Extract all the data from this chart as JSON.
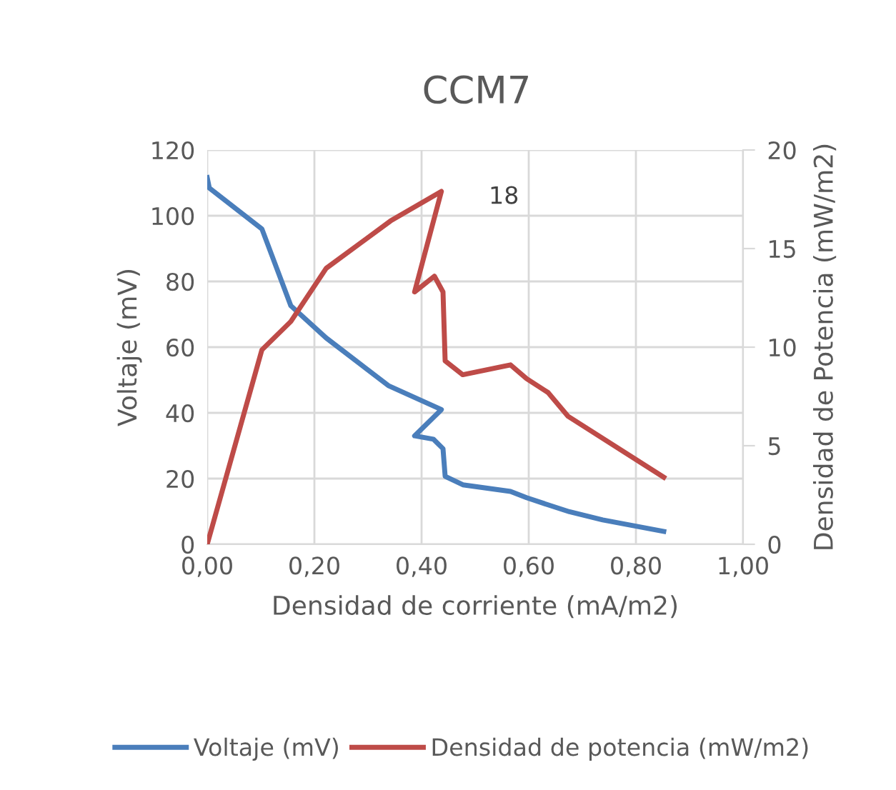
{
  "chart_data": {
    "type": "line",
    "title": "CCM7",
    "xlabel": "Densidad de corriente (mA/m2)",
    "ylabel": "Voltaje (mV)",
    "y2label": "Densidad de Potencia (mW/m2)",
    "xlim": [
      0,
      1
    ],
    "xticks": [
      {
        "value": 0,
        "label": "0,00"
      },
      {
        "value": 0.2,
        "label": "0,20"
      },
      {
        "value": 0.4,
        "label": "0,40"
      },
      {
        "value": 0.6,
        "label": "0,60"
      },
      {
        "value": 0.8,
        "label": "0,80"
      },
      {
        "value": 1,
        "label": "1,00"
      }
    ],
    "ylim": [
      0,
      120
    ],
    "yticks": [
      0,
      20,
      40,
      60,
      80,
      100,
      120
    ],
    "y2lim": [
      0,
      20
    ],
    "y2ticks": [
      0,
      5,
      10,
      15,
      20
    ],
    "grid": true,
    "legend": "bottom",
    "marker": "none",
    "line_style": "solid",
    "annotations": [
      "18"
    ],
    "series": [
      {
        "name": "Voltaje (mV)",
        "color": "#4a7ebb",
        "x": [
          0,
          0.004,
          0.102,
          0.156,
          0.222,
          0.338,
          0.437,
          0.387,
          0.422,
          0.44,
          0.444,
          0.477,
          0.566,
          0.596,
          0.636,
          0.676,
          0.738,
          0.852
        ],
        "values": [
          111.6,
          108.4,
          96,
          72.6,
          62.8,
          48.3,
          41,
          33,
          32,
          29.1,
          20.7,
          18.1,
          16.1,
          14.2,
          12,
          9.9,
          7.4,
          3.9
        ]
      },
      {
        "name": "Densidad de potencia (mW/m2)",
        "color": "#be4b48",
        "axis": "y2",
        "x": [
          0,
          0.102,
          0.156,
          0.222,
          0.342,
          0.437,
          0.387,
          0.424,
          0.44,
          0.444,
          0.477,
          0.566,
          0.596,
          0.636,
          0.673,
          0.852
        ],
        "values": [
          0,
          9.86,
          11.3,
          14.0,
          16.4,
          17.9,
          12.8,
          13.6,
          12.8,
          9.3,
          8.6,
          9.1,
          8.4,
          7.7,
          6.5,
          3.4
        ]
      }
    ]
  }
}
